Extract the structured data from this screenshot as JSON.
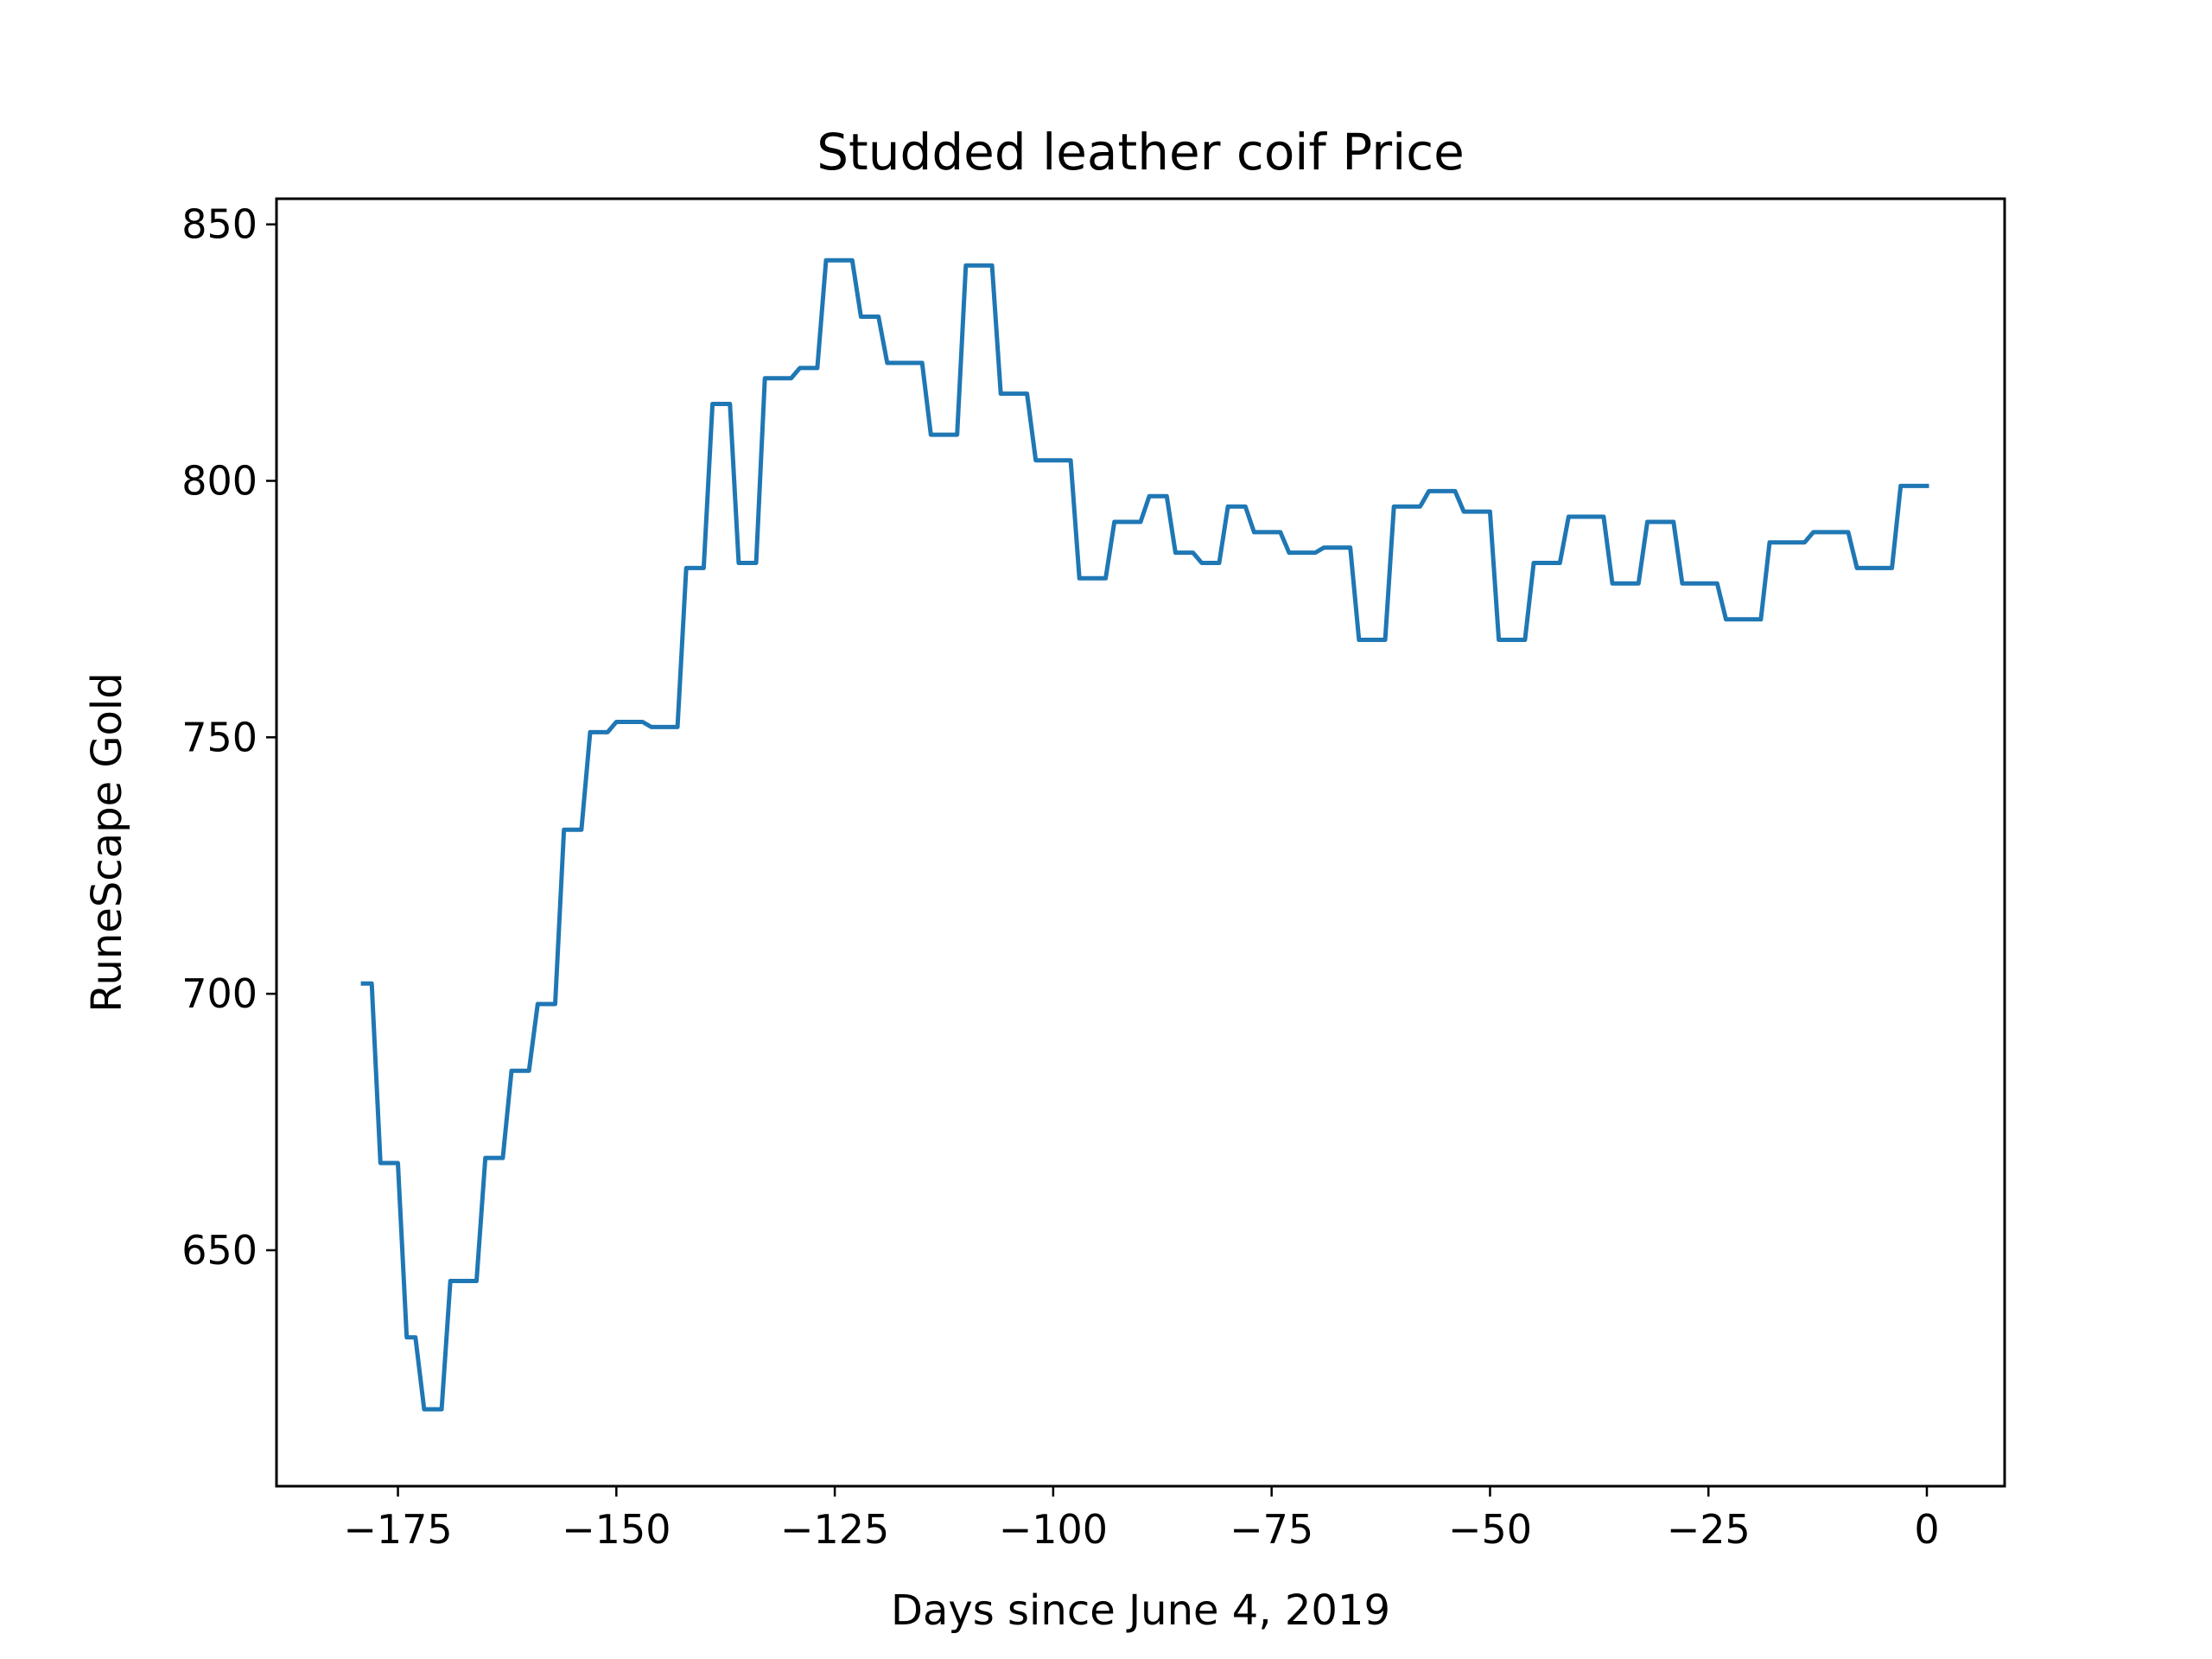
{
  "colors": {
    "series": "#1f77b4",
    "background": "#ffffff",
    "axes": "#000000"
  },
  "chart_data": {
    "type": "line",
    "title": "Studded leather coif Price",
    "xlabel": "Days since June 4, 2019",
    "ylabel": "RuneScape Gold",
    "xlim": [
      -188.9,
      8.9
    ],
    "ylim": [
      604,
      855
    ],
    "grid": false,
    "legend": "none",
    "x_ticks": [
      -175,
      -150,
      -125,
      -100,
      -75,
      -50,
      -25,
      0
    ],
    "x_tick_labels": [
      "−175",
      "−150",
      "−125",
      "−100",
      "−75",
      "−50",
      "−25",
      "0"
    ],
    "y_ticks": [
      650,
      700,
      750,
      800,
      850
    ],
    "y_tick_labels": [
      "650",
      "700",
      "750",
      "800",
      "850"
    ],
    "series": [
      {
        "x": [
          -179,
          -178,
          -177,
          -176,
          -175,
          -174,
          -173,
          -172,
          -171,
          -170,
          -169,
          -168,
          -167,
          -166,
          -165,
          -164,
          -163,
          -162,
          -161,
          -160,
          -159,
          -158,
          -157,
          -156,
          -155,
          -154,
          -153,
          -152,
          -151,
          -150,
          -149,
          -148,
          -147,
          -146,
          -145,
          -144,
          -143,
          -142,
          -141,
          -140,
          -139,
          -138,
          -137,
          -136,
          -135,
          -134,
          -133,
          -132,
          -131,
          -130,
          -129,
          -128,
          -127,
          -126,
          -125,
          -124,
          -123,
          -122,
          -121,
          -120,
          -119,
          -118,
          -117,
          -116,
          -115,
          -114,
          -113,
          -112,
          -111,
          -110,
          -109,
          -108,
          -107,
          -106,
          -105,
          -104,
          -103,
          -102,
          -101,
          -100,
          -99,
          -98,
          -97,
          -96,
          -95,
          -94,
          -93,
          -92,
          -91,
          -90,
          -89,
          -88,
          -87,
          -86,
          -85,
          -84,
          -83,
          -82,
          -81,
          -80,
          -79,
          -78,
          -77,
          -76,
          -75,
          -74,
          -73,
          -72,
          -71,
          -70,
          -69,
          -68,
          -67,
          -66,
          -65,
          -64,
          -63,
          -62,
          -61,
          -60,
          -59,
          -58,
          -57,
          -56,
          -55,
          -54,
          -53,
          -52,
          -51,
          -50,
          -49,
          -48,
          -47,
          -46,
          -45,
          -44,
          -43,
          -42,
          -41,
          -40,
          -39,
          -38,
          -37,
          -36,
          -35,
          -34,
          -33,
          -32,
          -31,
          -30,
          -29,
          -28,
          -27,
          -26,
          -25,
          -24,
          -23,
          -22,
          -21,
          -20,
          -19,
          -18,
          -17,
          -16,
          -15,
          -14,
          -13,
          -12,
          -11,
          -10,
          -9,
          -8,
          -7,
          -6,
          -5,
          -4,
          -3,
          -2,
          -1,
          0
        ],
        "y": [
          702,
          702,
          667,
          667,
          667,
          633,
          633,
          619,
          619,
          619,
          644,
          644,
          644,
          644,
          668,
          668,
          668,
          685,
          685,
          685,
          698,
          698,
          698,
          732,
          732,
          732,
          751,
          751,
          751,
          753,
          753,
          753,
          753,
          752,
          752,
          752,
          752,
          783,
          783,
          783,
          815,
          815,
          815,
          784,
          784,
          784,
          820,
          820,
          820,
          820,
          822,
          822,
          822,
          843,
          843,
          843,
          843,
          832,
          832,
          832,
          823,
          823,
          823,
          823,
          823,
          809,
          809,
          809,
          809,
          842,
          842,
          842,
          842,
          817,
          817,
          817,
          817,
          804,
          804,
          804,
          804,
          804,
          781,
          781,
          781,
          781,
          792,
          792,
          792,
          792,
          797,
          797,
          797,
          786,
          786,
          786,
          784,
          784,
          784,
          795,
          795,
          795,
          790,
          790,
          790,
          790,
          786,
          786,
          786,
          786,
          787,
          787,
          787,
          787,
          769,
          769,
          769,
          769,
          795,
          795,
          795,
          795,
          798,
          798,
          798,
          798,
          794,
          794,
          794,
          794,
          769,
          769,
          769,
          769,
          784,
          784,
          784,
          784,
          793,
          793,
          793,
          793,
          793,
          780,
          780,
          780,
          780,
          792,
          792,
          792,
          792,
          780,
          780,
          780,
          780,
          780,
          773,
          773,
          773,
          773,
          773,
          788,
          788,
          788,
          788,
          788,
          790,
          790,
          790,
          790,
          790,
          783,
          783,
          783,
          783,
          783,
          799,
          799,
          799,
          799
        ]
      }
    ]
  }
}
